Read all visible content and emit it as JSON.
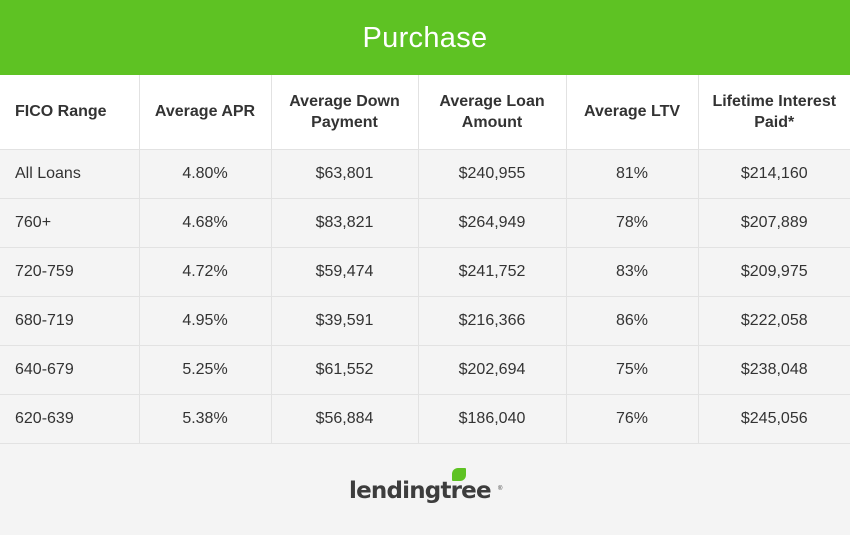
{
  "header": {
    "title": "Purchase"
  },
  "chart_data": {
    "type": "table",
    "title": "Purchase",
    "columns": [
      "FICO Range",
      "Average APR",
      "Average Down Payment",
      "Average Loan Amount",
      "Average LTV",
      "Lifetime Interest Paid*"
    ],
    "rows": [
      [
        "All Loans",
        "4.80%",
        "$63,801",
        "$240,955",
        "81%",
        "$214,160"
      ],
      [
        "760+",
        "4.68%",
        "$83,821",
        "$264,949",
        "78%",
        "$207,889"
      ],
      [
        "720-759",
        "4.72%",
        "$59,474",
        "$241,752",
        "83%",
        "$209,975"
      ],
      [
        "680-719",
        "4.95%",
        "$39,591",
        "$216,366",
        "86%",
        "$222,058"
      ],
      [
        "640-679",
        "5.25%",
        "$61,552",
        "$202,694",
        "75%",
        "$238,048"
      ],
      [
        "620-639",
        "5.38%",
        "$56,884",
        "$186,040",
        "76%",
        "$245,056"
      ]
    ]
  },
  "logo": {
    "text": "lendingtree",
    "reg_mark": "®"
  },
  "colors": {
    "brand_green": "#5ec223",
    "text": "#333333",
    "background": "#f4f4f4",
    "header_bg": "#ffffff",
    "grid": "#e2e2e2"
  }
}
